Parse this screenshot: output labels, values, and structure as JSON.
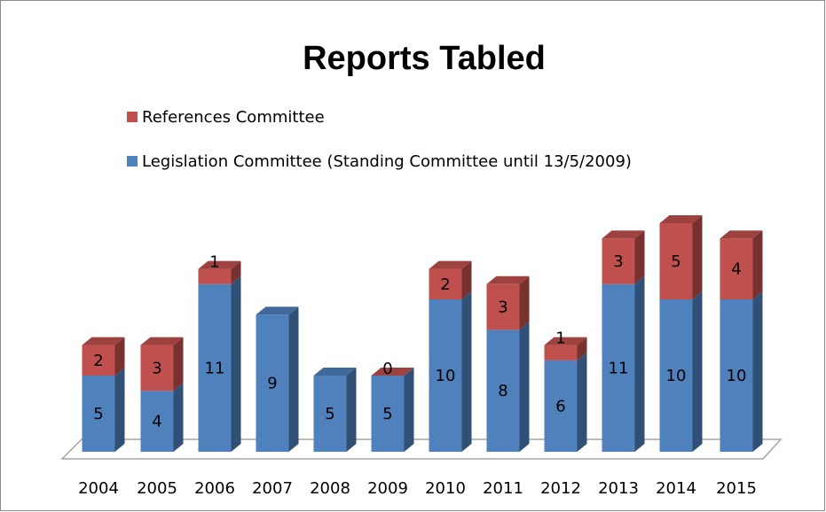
{
  "chart_data": {
    "type": "bar",
    "stacked": true,
    "style": "3d",
    "title": "Reports Tabled",
    "xlabel": "",
    "ylabel": "",
    "ylim": [
      0,
      16
    ],
    "grid": false,
    "legend_position": "top",
    "categories": [
      "2004",
      "2005",
      "2006",
      "2007",
      "2008",
      "2009",
      "2010",
      "2011",
      "2012",
      "2013",
      "2014",
      "2015"
    ],
    "series": [
      {
        "name": "Legislation Committee (Standing Committee until 13/5/2009)",
        "color": "#4F81BD",
        "values": [
          5,
          4,
          11,
          9,
          5,
          5,
          10,
          8,
          6,
          11,
          10,
          10
        ],
        "labels": [
          "5",
          "4",
          "11",
          "9",
          "5",
          "5",
          "10",
          "8",
          "6",
          "11",
          "10",
          "10"
        ]
      },
      {
        "name": "References Committee",
        "color": "#C0504D",
        "values": [
          2,
          3,
          1,
          null,
          null,
          0,
          2,
          3,
          1,
          3,
          5,
          4
        ],
        "labels": [
          "2",
          "3",
          "1",
          "",
          "",
          "0",
          "2",
          "3",
          "1",
          "3",
          "5",
          "4"
        ]
      }
    ],
    "legend_order": [
      1,
      0
    ]
  }
}
